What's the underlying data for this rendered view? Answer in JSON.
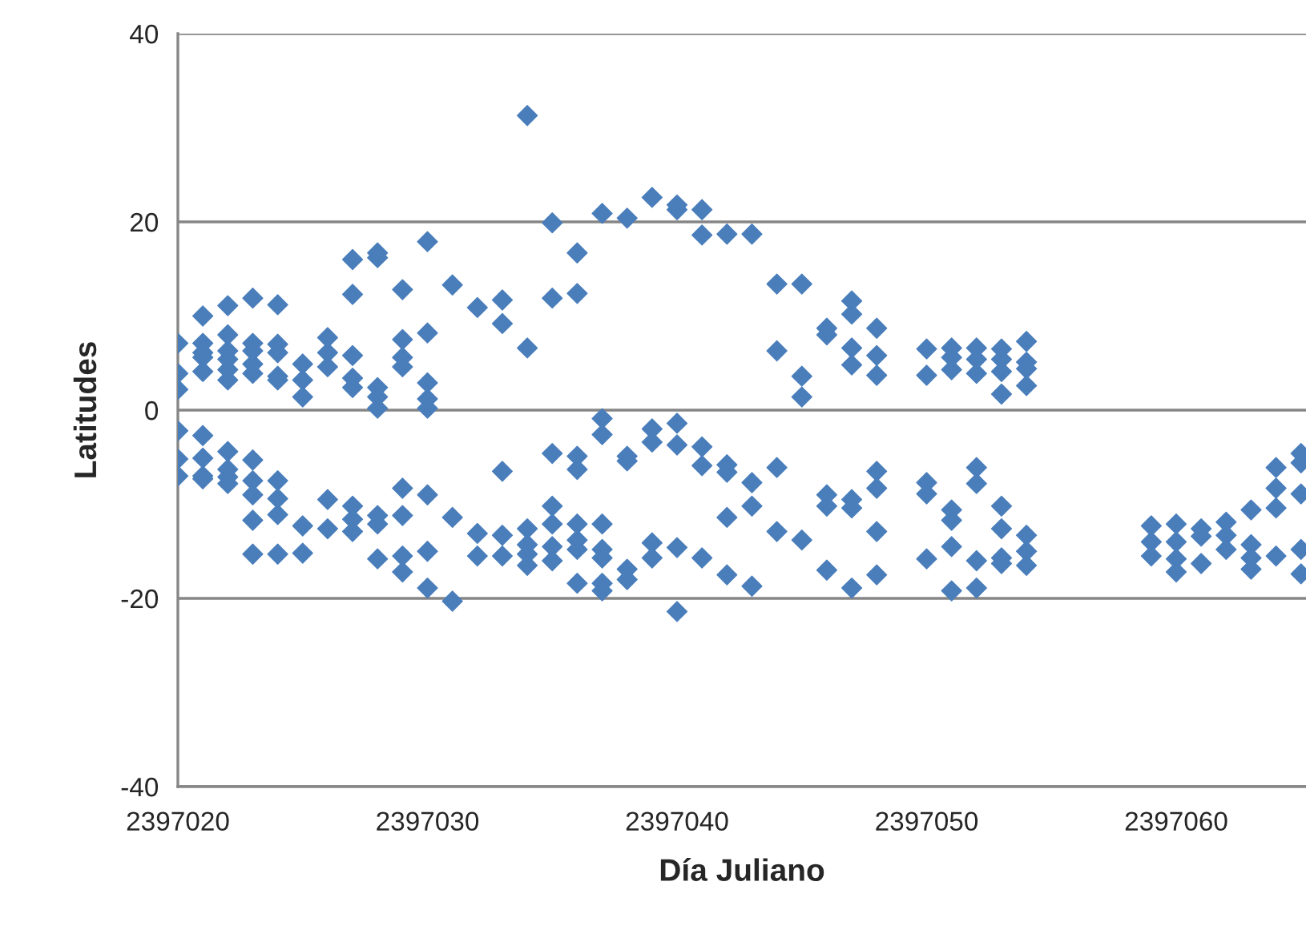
{
  "chart_data": {
    "type": "scatter",
    "xlabel": "Día Juliano",
    "ylabel": "Latitudes",
    "xlim": [
      2397020,
      2397065.2
    ],
    "xticks": [
      2397020,
      2397030,
      2397040,
      2397050,
      2397060
    ],
    "ylim": [
      -40,
      40
    ],
    "yticks": [
      -40,
      -20,
      0,
      20,
      40
    ],
    "grid": "y",
    "marker": "diamond",
    "series": [
      {
        "color": "#4a7ebb",
        "x": [
          2397020,
          2397020,
          2397020,
          2397020,
          2397020,
          2397020,
          2397021,
          2397021,
          2397021,
          2397021,
          2397021,
          2397021,
          2397021,
          2397021,
          2397021,
          2397022,
          2397022,
          2397022,
          2397022,
          2397022,
          2397022,
          2397022,
          2397022,
          2397022,
          2397022,
          2397023,
          2397023,
          2397023,
          2397023,
          2397023,
          2397023,
          2397023,
          2397023,
          2397023,
          2397023,
          2397024,
          2397024,
          2397024,
          2397024,
          2397024,
          2397024,
          2397024,
          2397024,
          2397024,
          2397025,
          2397025,
          2397025,
          2397025,
          2397025,
          2397026,
          2397026,
          2397026,
          2397026,
          2397026,
          2397027,
          2397027,
          2397027,
          2397027,
          2397027,
          2397027,
          2397027,
          2397027,
          2397028,
          2397028,
          2397028,
          2397028,
          2397028,
          2397028,
          2397028,
          2397028,
          2397029,
          2397029,
          2397029,
          2397029,
          2397029,
          2397029,
          2397029,
          2397029,
          2397030,
          2397030,
          2397030,
          2397030,
          2397030,
          2397030,
          2397030,
          2397030,
          2397031,
          2397031,
          2397031,
          2397032,
          2397032,
          2397032,
          2397033,
          2397033,
          2397033,
          2397033,
          2397033,
          2397034,
          2397034,
          2397034,
          2397034,
          2397034,
          2397034,
          2397035,
          2397035,
          2397035,
          2397035,
          2397035,
          2397035,
          2397035,
          2397036,
          2397036,
          2397036,
          2397036,
          2397036,
          2397036,
          2397036,
          2397036,
          2397037,
          2397037,
          2397037,
          2397037,
          2397037,
          2397037,
          2397037,
          2397037,
          2397038,
          2397038,
          2397038,
          2397038,
          2397038,
          2397039,
          2397039,
          2397039,
          2397039,
          2397039,
          2397040,
          2397040,
          2397040,
          2397040,
          2397040,
          2397040,
          2397041,
          2397041,
          2397041,
          2397041,
          2397041,
          2397042,
          2397042,
          2397042,
          2397042,
          2397042,
          2397043,
          2397043,
          2397043,
          2397043,
          2397044,
          2397044,
          2397044,
          2397044,
          2397045,
          2397045,
          2397045,
          2397045,
          2397046,
          2397046,
          2397046,
          2397046,
          2397046,
          2397047,
          2397047,
          2397047,
          2397047,
          2397047,
          2397047,
          2397047,
          2397048,
          2397048,
          2397048,
          2397048,
          2397048,
          2397048,
          2397048,
          2397050,
          2397050,
          2397050,
          2397050,
          2397050,
          2397051,
          2397051,
          2397051,
          2397051,
          2397051,
          2397051,
          2397051,
          2397052,
          2397052,
          2397052,
          2397052,
          2397052,
          2397052,
          2397052,
          2397053,
          2397053,
          2397053,
          2397053,
          2397053,
          2397053,
          2397053,
          2397053,
          2397054,
          2397054,
          2397054,
          2397054,
          2397054,
          2397054,
          2397054,
          2397059,
          2397059,
          2397059,
          2397060,
          2397060,
          2397060,
          2397060,
          2397061,
          2397061,
          2397061,
          2397062,
          2397062,
          2397062,
          2397063,
          2397063,
          2397063,
          2397063,
          2397064,
          2397064,
          2397064,
          2397064,
          2397065,
          2397065,
          2397065,
          2397065,
          2397065
        ],
        "values": [
          7.1,
          3.9,
          2.2,
          -2.2,
          -5.2,
          -7.0,
          10.0,
          7.1,
          6.1,
          5.6,
          4.1,
          -2.7,
          -5.1,
          -7.0,
          -7.3,
          11.1,
          8.0,
          6.3,
          5.4,
          4.3,
          3.2,
          -4.4,
          -6.3,
          -7.1,
          -7.8,
          11.9,
          7.1,
          6.3,
          4.9,
          3.9,
          -5.3,
          -7.5,
          -9.0,
          -11.7,
          -15.3,
          11.2,
          7.0,
          6.1,
          3.6,
          3.2,
          -7.5,
          -9.4,
          -11.1,
          -15.3,
          4.9,
          3.2,
          1.4,
          -12.3,
          -15.2,
          7.7,
          6.1,
          4.6,
          -9.5,
          -12.6,
          16.0,
          12.3,
          5.8,
          3.4,
          2.4,
          -10.2,
          -11.6,
          -12.9,
          16.7,
          16.2,
          2.4,
          1.4,
          0.2,
          -11.2,
          -12.1,
          -15.8,
          12.8,
          7.5,
          5.6,
          4.6,
          -8.3,
          -11.2,
          -15.5,
          -17.2,
          17.9,
          8.2,
          2.9,
          1.2,
          0.2,
          -9.0,
          -15.0,
          -18.9,
          13.3,
          -11.4,
          -20.3,
          10.9,
          -13.1,
          -15.5,
          11.7,
          9.2,
          -6.5,
          -13.3,
          -15.5,
          31.3,
          6.6,
          -12.6,
          -14.3,
          -15.3,
          -16.5,
          19.9,
          11.9,
          -4.6,
          -10.2,
          -12.1,
          -14.5,
          -16.0,
          16.7,
          12.4,
          -4.9,
          -6.3,
          -12.1,
          -13.8,
          -14.8,
          -18.4,
          20.9,
          -0.9,
          -2.6,
          -12.1,
          -14.8,
          -15.7,
          -18.4,
          -19.2,
          20.4,
          -4.9,
          -5.4,
          -16.9,
          -18.0,
          22.6,
          -2.0,
          -3.4,
          -14.1,
          -15.7,
          21.8,
          21.3,
          -1.4,
          -3.7,
          -14.6,
          -21.4,
          21.3,
          18.6,
          -3.9,
          -5.9,
          -15.7,
          18.7,
          -5.8,
          -6.6,
          -11.4,
          -17.5,
          18.7,
          -7.7,
          -10.2,
          -18.7,
          13.4,
          6.3,
          -6.1,
          -12.9,
          13.4,
          3.6,
          1.4,
          -13.8,
          8.7,
          8.0,
          -9.0,
          -10.2,
          -17.0,
          11.6,
          10.2,
          6.6,
          4.8,
          -9.5,
          -10.4,
          -18.9,
          8.7,
          5.8,
          3.7,
          -6.5,
          -8.3,
          -12.9,
          -17.5,
          6.5,
          3.7,
          -7.7,
          -8.9,
          -15.8,
          6.6,
          5.6,
          4.3,
          -10.6,
          -11.7,
          -14.5,
          -19.2,
          6.6,
          5.4,
          3.9,
          -6.1,
          -7.8,
          -16.0,
          -18.9,
          6.5,
          5.4,
          4.1,
          1.7,
          -10.2,
          -12.6,
          -15.7,
          -16.3,
          7.3,
          5.1,
          4.4,
          2.6,
          -13.3,
          -15.0,
          -16.5,
          -12.3,
          -14.0,
          -15.5,
          -12.1,
          -14.0,
          -15.8,
          -17.2,
          -12.6,
          -13.4,
          -16.3,
          -11.9,
          -13.3,
          -14.8,
          -10.6,
          -14.3,
          -15.7,
          -16.9,
          -6.1,
          -8.3,
          -10.4,
          -15.5,
          -4.6,
          -5.6,
          -8.9,
          -14.8,
          -17.4
        ]
      }
    ]
  }
}
